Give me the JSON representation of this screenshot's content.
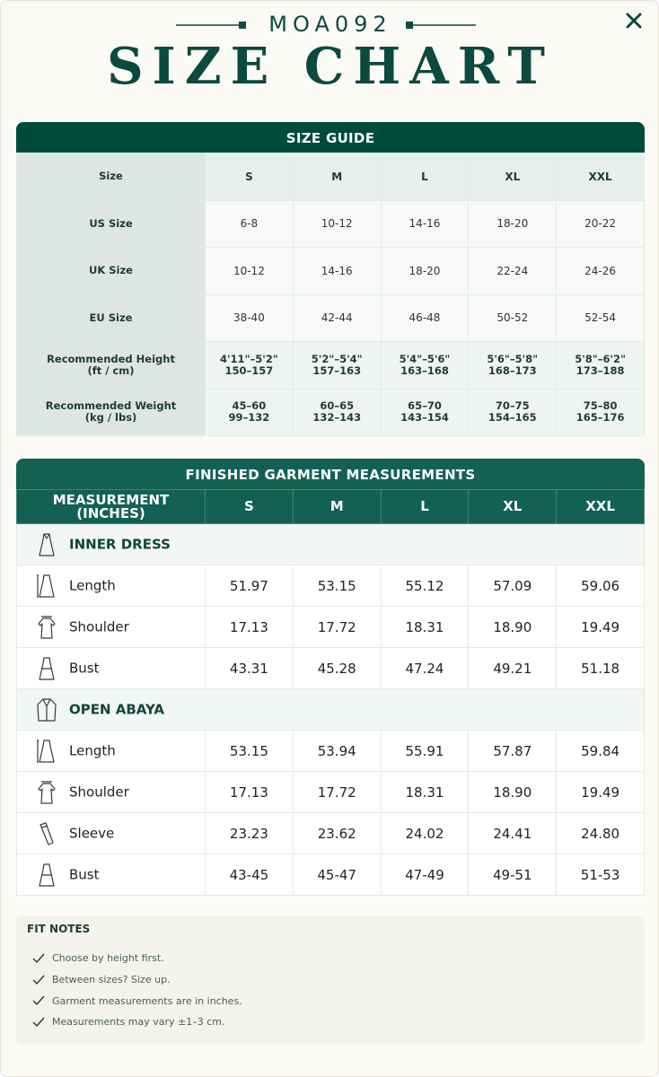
{
  "header": {
    "code": "MOA092",
    "title": "SIZE CHART"
  },
  "size_guide": {
    "title": "SIZE GUIDE",
    "columns": [
      "Size",
      "S",
      "M",
      "L",
      "XL",
      "XXL"
    ],
    "rows": [
      [
        "US Size",
        "6-8",
        "10-12",
        "14-16",
        "18-20",
        "20-22"
      ],
      [
        "UK Size",
        "10-12",
        "14-16",
        "18-20",
        "22-24",
        "24-26"
      ],
      [
        "EU Size",
        "38-40",
        "42-44",
        "46-48",
        "50-52",
        "52-54"
      ],
      [
        "Recommended Height\n(ft / cm)",
        "4'11\"–5'2\"\n150–157",
        "5'2\"–5'4\"\n157–163",
        "5'4\"–5'6\"\n163–168",
        "5'6\"–5'8\"\n168–173",
        "5'8\"–6'2\"\n173–188"
      ],
      [
        "Recommended Weight\n(kg / lbs)",
        "45–60\n99–132",
        "60–65\n132–143",
        "65–70\n143–154",
        "70–75\n154–165",
        "75–80\n165–176"
      ]
    ]
  },
  "measurements": {
    "title": "FINISHED GARMENT MEASUREMENTS",
    "columns": [
      "MEASUREMENT\n(INCHES)",
      "S",
      "M",
      "L",
      "XL",
      "XXL"
    ],
    "sections": [
      {
        "title": "INNER DRESS",
        "rows": [
          [
            "Length",
            "51.97",
            "53.15",
            "55.12",
            "57.09",
            "59.06"
          ],
          [
            "Shoulder",
            "17.13",
            "17.72",
            "18.31",
            "18.90",
            "19.49"
          ],
          [
            "Bust",
            "43.31",
            "45.28",
            "47.24",
            "49.21",
            "51.18"
          ]
        ]
      },
      {
        "title": "OPEN ABAYA",
        "rows": [
          [
            "Length",
            "53.15",
            "53.94",
            "55.91",
            "57.87",
            "59.84"
          ],
          [
            "Shoulder",
            "17.13",
            "17.72",
            "18.31",
            "18.90",
            "19.49"
          ],
          [
            "Sleeve",
            "23.23",
            "23.62",
            "24.02",
            "24.41",
            "24.80"
          ],
          [
            "Bust",
            "43-45",
            "45-47",
            "47-49",
            "49-51",
            "51-53"
          ]
        ]
      }
    ]
  },
  "fit_notes": {
    "title": "FIT NOTES",
    "items": [
      "Choose by height first.",
      "Between sizes? Size up.",
      "Garment measurements are in inches.",
      "Measurements may vary ±1–3 cm."
    ]
  }
}
